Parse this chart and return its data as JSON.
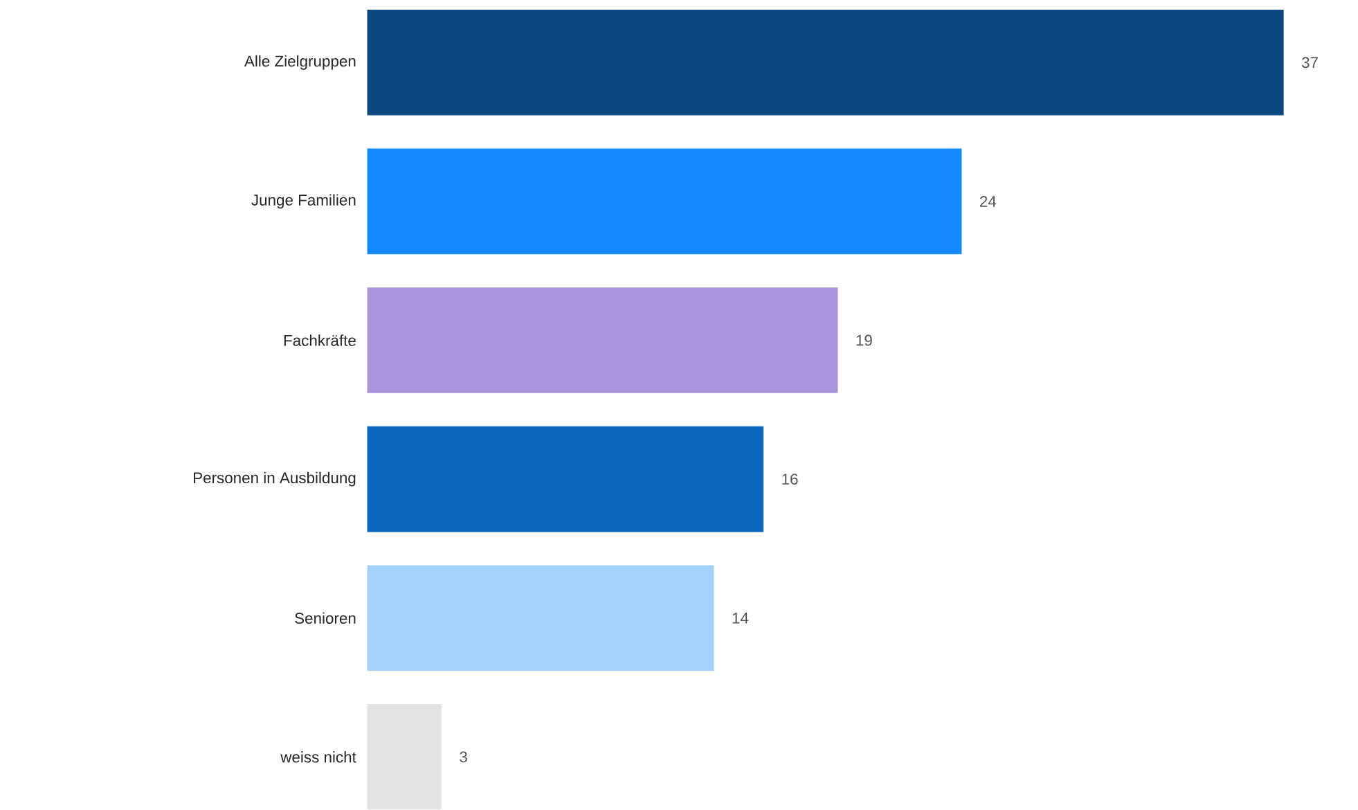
{
  "chart_data": {
    "type": "bar",
    "orientation": "horizontal",
    "categories": [
      "Alle Zielgruppen",
      "Junge Familien",
      "Fachkräfte",
      "Personen in Ausbildung",
      "Senioren",
      "weiss nicht"
    ],
    "values": [
      37,
      24,
      19,
      16,
      14,
      3
    ],
    "colors": [
      "#0b4780",
      "#1589ff",
      "#ab95dd",
      "#0c67bf",
      "#a3d2ff",
      "#e3e3e3"
    ],
    "data_labels": true
  }
}
